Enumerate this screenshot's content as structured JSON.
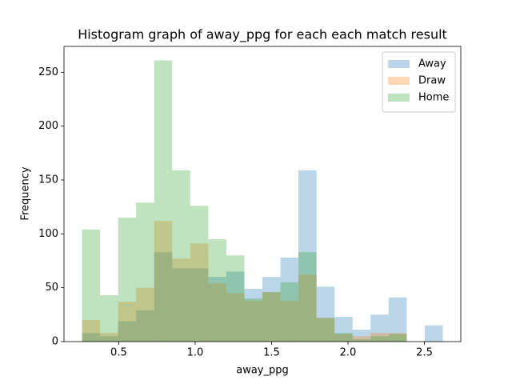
{
  "chart_data": {
    "type": "histogram",
    "title": "Histogram graph of away_ppg for each each match result",
    "x_label": "away_ppg",
    "y_label": "Frequency",
    "bins": [
      0.26,
      0.378,
      0.496,
      0.614,
      0.732,
      0.85,
      0.968,
      1.086,
      1.204,
      1.322,
      1.44,
      1.558,
      1.676,
      1.794,
      1.912,
      2.03,
      2.148,
      2.266,
      2.384,
      2.502,
      2.62
    ],
    "series": [
      {
        "name": "Away",
        "color": "#1f77b4",
        "values": [
          8,
          5,
          19,
          29,
          83,
          68,
          68,
          60,
          65,
          49,
          60,
          78,
          159,
          51,
          23,
          11,
          25,
          41,
          0,
          15
        ]
      },
      {
        "name": "Draw",
        "color": "#ff7f0e",
        "values": [
          20,
          8,
          37,
          50,
          112,
          77,
          91,
          54,
          45,
          38,
          46,
          38,
          62,
          22,
          7,
          5,
          8,
          8,
          0,
          0
        ]
      },
      {
        "name": "Home",
        "color": "#2ca02c",
        "values": [
          104,
          43,
          115,
          129,
          261,
          159,
          126,
          95,
          80,
          40,
          46,
          55,
          83,
          22,
          8,
          2,
          5,
          7,
          0,
          0
        ]
      }
    ],
    "alpha": 0.3,
    "xlim": [
      0.142,
      2.738
    ],
    "ylim": [
      0,
      274
    ],
    "xticks": [
      0.5,
      {
        "value": 1,
        "label": "1.0"
      },
      1.5,
      {
        "value": 2,
        "label": "2.0"
      },
      2.5
    ],
    "yticks": [
      0,
      50,
      100,
      150,
      200,
      250
    ],
    "legend": "upper right"
  }
}
